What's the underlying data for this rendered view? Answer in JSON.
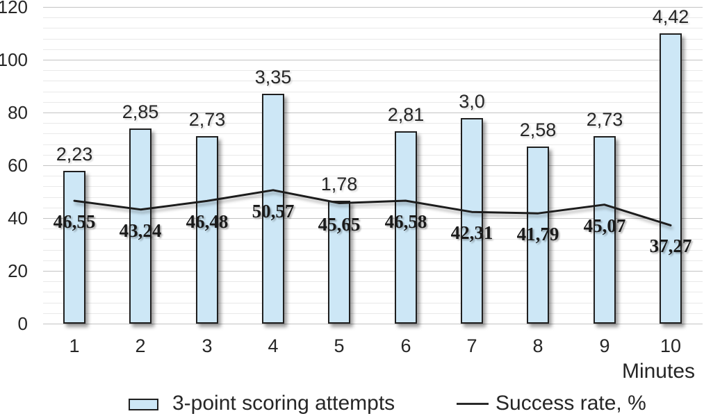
{
  "colors": {
    "bar_fill": "#cde7f6",
    "bar_border": "#1f1f1f",
    "line": "#1d1d1d",
    "grid_major": "#c3c3c3",
    "grid_minor": "#e9e9e9",
    "text": "#262626",
    "background": "#ffffff"
  },
  "legend": {
    "bar_label": "3-point scoring attempts",
    "line_label": "Success rate, %"
  },
  "chart_data": {
    "type": "bar+line",
    "title": "",
    "xlabel": "Minutes",
    "ylabel": "",
    "categories": [
      "1",
      "2",
      "3",
      "4",
      "5",
      "6",
      "7",
      "8",
      "9",
      "10"
    ],
    "y_axis": {
      "min": 0,
      "max": 120,
      "major_step": 20,
      "minor_step": 4,
      "ticks": [
        "0",
        "20",
        "40",
        "60",
        "80",
        "100",
        "120"
      ],
      "grid": true
    },
    "legend_position": "bottom",
    "series": [
      {
        "name": "3-point scoring attempts",
        "type": "bar",
        "data_labels": [
          "2,23",
          "2,85",
          "2,73",
          "3,35",
          "1,78",
          "2,81",
          "3,0",
          "2,58",
          "2,73",
          "4,42"
        ],
        "values": [
          2.23,
          2.85,
          2.73,
          3.35,
          1.78,
          2.81,
          3.0,
          2.58,
          2.73,
          4.42
        ],
        "bar_tops_left_axis_units": [
          58,
          74,
          71,
          87,
          46.5,
          73,
          78,
          67,
          71,
          110
        ]
      },
      {
        "name": "Success rate, %",
        "type": "line",
        "data_labels": [
          "46,55",
          "43,24",
          "46,48",
          "50,57",
          "45,65",
          "46,58",
          "42,31",
          "41,79",
          "45,07",
          "37,27"
        ],
        "values": [
          46.55,
          43.24,
          46.48,
          50.57,
          45.65,
          46.58,
          42.31,
          41.79,
          45.07,
          37.27
        ]
      }
    ]
  }
}
